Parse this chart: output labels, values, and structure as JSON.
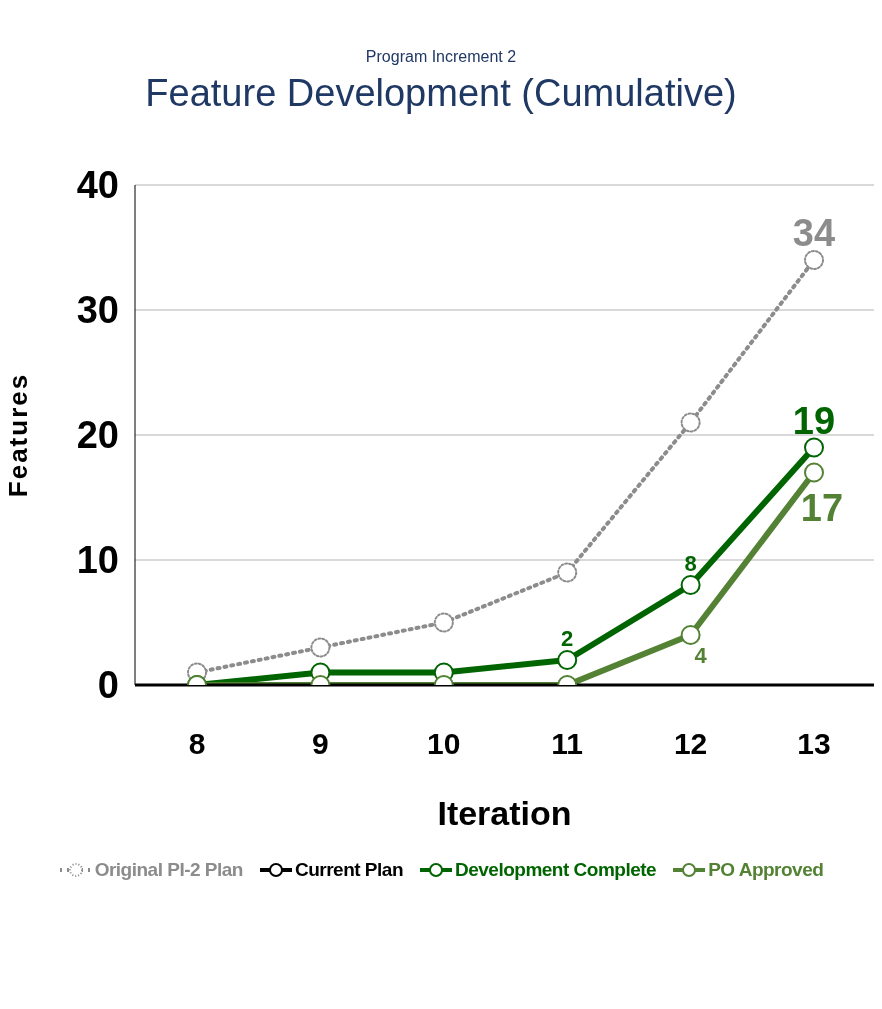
{
  "chart_data": {
    "type": "line",
    "subtitle": "Program Increment 2",
    "title": "Feature Development (Cumulative)",
    "xlabel": "Iteration",
    "ylabel": "Features",
    "categories": [
      "8",
      "9",
      "10",
      "11",
      "12",
      "13"
    ],
    "ylim": [
      0,
      40
    ],
    "yticks": [
      0,
      10,
      20,
      30,
      40
    ],
    "grid": "y",
    "legend": "bottom",
    "marker": "circle",
    "series": [
      {
        "name": "Original PI-2 Plan",
        "color": "#8c8c8c",
        "line_style": "dotted",
        "values": [
          1,
          3,
          5,
          9,
          21,
          34
        ],
        "value_labels": [
          null,
          null,
          null,
          null,
          null,
          "34"
        ]
      },
      {
        "name": "Current Plan",
        "color": "#000000",
        "values": [
          null,
          null,
          null,
          null,
          null,
          null
        ]
      },
      {
        "name": "Development Complete",
        "color": "#006400",
        "values": [
          0,
          1,
          1,
          2,
          8,
          19
        ],
        "value_labels": [
          null,
          null,
          null,
          "2",
          "8",
          "19"
        ]
      },
      {
        "name": "PO Approved",
        "color": "#548235",
        "values": [
          0,
          0,
          0,
          0,
          4,
          17
        ],
        "value_labels": [
          null,
          null,
          null,
          null,
          "4",
          "17"
        ]
      }
    ]
  }
}
